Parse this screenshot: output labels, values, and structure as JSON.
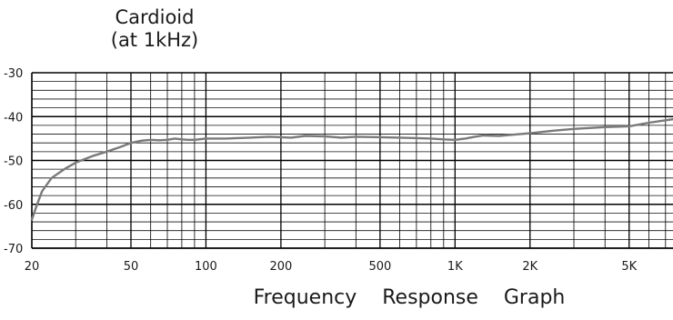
{
  "chart_data": {
    "type": "line",
    "title": "Cardioid",
    "subtitle": "(at   1kHz)",
    "xlabel": "Frequency    Response    Graph",
    "ylabel": "",
    "x_scale": "log",
    "xlim": [
      20,
      7500
    ],
    "ylim": [
      -70,
      -30
    ],
    "grid": true,
    "y_ticks": [
      -30,
      -40,
      -50,
      -60,
      -70
    ],
    "y_tick_labels": [
      "-30",
      "-40",
      "-50",
      "-60",
      "-70"
    ],
    "x_ticks": [
      20,
      50,
      100,
      200,
      500,
      1000,
      2000,
      5000
    ],
    "x_tick_labels": [
      "20",
      "50",
      "100",
      "200",
      "500",
      "1K",
      "2K",
      "5K"
    ],
    "series": [
      {
        "color": "#7a7a7a",
        "x": [
          20,
          21,
          22,
          24,
          27,
          30,
          35,
          40,
          45,
          50,
          55,
          60,
          65,
          70,
          75,
          80,
          85,
          90,
          100,
          120,
          150,
          180,
          200,
          220,
          250,
          300,
          350,
          400,
          500,
          600,
          700,
          800,
          900,
          1000,
          1100,
          1200,
          1300,
          1500,
          2000,
          2500,
          3000,
          4000,
          5000,
          6000,
          7500
        ],
        "y": [
          -63.5,
          -60,
          -57,
          -54,
          -52,
          -50.5,
          -49,
          -48,
          -47,
          -46,
          -45.5,
          -45.3,
          -45.4,
          -45.3,
          -45.0,
          -45.2,
          -45.3,
          -45.3,
          -45.0,
          -45.0,
          -44.8,
          -44.6,
          -44.7,
          -44.8,
          -44.4,
          -44.5,
          -44.8,
          -44.6,
          -44.7,
          -44.8,
          -44.9,
          -45.0,
          -45.2,
          -45.3,
          -45.0,
          -44.6,
          -44.3,
          -44.4,
          -43.8,
          -43.2,
          -42.8,
          -42.4,
          -42.2,
          -41.4,
          -40.6
        ]
      }
    ]
  }
}
